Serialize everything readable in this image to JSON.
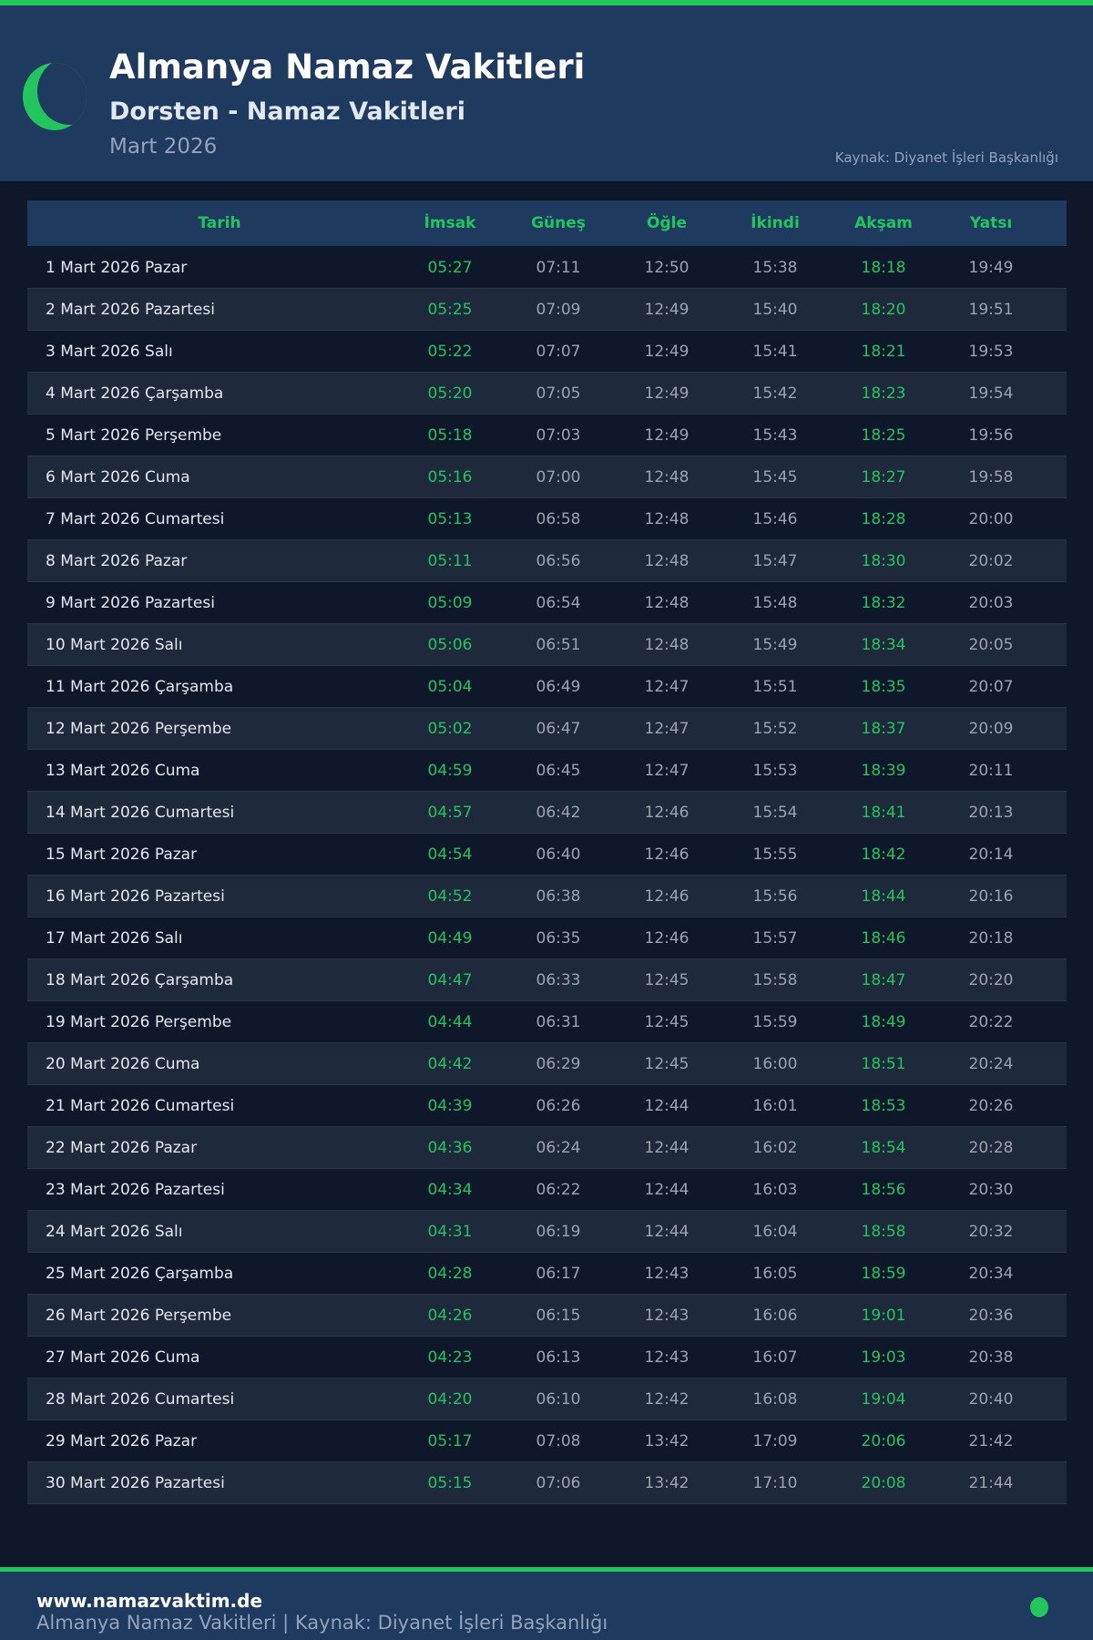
{
  "header": {
    "title": "Almanya Namaz Vakitleri",
    "subtitle": "Dorsten - Namaz Vakitleri",
    "month": "Mart 2026",
    "source": "Kaynak: Diyanet İşleri Başkanlığı",
    "icon": "crescent-moon-icon"
  },
  "colors": {
    "accent": "#22c55e",
    "header_bg": "#1e3a5f",
    "page_bg": "#0f172a"
  },
  "table": {
    "columns": [
      "Tarih",
      "İmsak",
      "Güneş",
      "Öğle",
      "İkindi",
      "Akşam",
      "Yatsı"
    ],
    "rows": [
      [
        "1 Mart 2026 Pazar",
        "05:27",
        "07:11",
        "12:50",
        "15:38",
        "18:18",
        "19:49"
      ],
      [
        "2 Mart 2026 Pazartesi",
        "05:25",
        "07:09",
        "12:49",
        "15:40",
        "18:20",
        "19:51"
      ],
      [
        "3 Mart 2026 Salı",
        "05:22",
        "07:07",
        "12:49",
        "15:41",
        "18:21",
        "19:53"
      ],
      [
        "4 Mart 2026 Çarşamba",
        "05:20",
        "07:05",
        "12:49",
        "15:42",
        "18:23",
        "19:54"
      ],
      [
        "5 Mart 2026 Perşembe",
        "05:18",
        "07:03",
        "12:49",
        "15:43",
        "18:25",
        "19:56"
      ],
      [
        "6 Mart 2026 Cuma",
        "05:16",
        "07:00",
        "12:48",
        "15:45",
        "18:27",
        "19:58"
      ],
      [
        "7 Mart 2026 Cumartesi",
        "05:13",
        "06:58",
        "12:48",
        "15:46",
        "18:28",
        "20:00"
      ],
      [
        "8 Mart 2026 Pazar",
        "05:11",
        "06:56",
        "12:48",
        "15:47",
        "18:30",
        "20:02"
      ],
      [
        "9 Mart 2026 Pazartesi",
        "05:09",
        "06:54",
        "12:48",
        "15:48",
        "18:32",
        "20:03"
      ],
      [
        "10 Mart 2026 Salı",
        "05:06",
        "06:51",
        "12:48",
        "15:49",
        "18:34",
        "20:05"
      ],
      [
        "11 Mart 2026 Çarşamba",
        "05:04",
        "06:49",
        "12:47",
        "15:51",
        "18:35",
        "20:07"
      ],
      [
        "12 Mart 2026 Perşembe",
        "05:02",
        "06:47",
        "12:47",
        "15:52",
        "18:37",
        "20:09"
      ],
      [
        "13 Mart 2026 Cuma",
        "04:59",
        "06:45",
        "12:47",
        "15:53",
        "18:39",
        "20:11"
      ],
      [
        "14 Mart 2026 Cumartesi",
        "04:57",
        "06:42",
        "12:46",
        "15:54",
        "18:41",
        "20:13"
      ],
      [
        "15 Mart 2026 Pazar",
        "04:54",
        "06:40",
        "12:46",
        "15:55",
        "18:42",
        "20:14"
      ],
      [
        "16 Mart 2026 Pazartesi",
        "04:52",
        "06:38",
        "12:46",
        "15:56",
        "18:44",
        "20:16"
      ],
      [
        "17 Mart 2026 Salı",
        "04:49",
        "06:35",
        "12:46",
        "15:57",
        "18:46",
        "20:18"
      ],
      [
        "18 Mart 2026 Çarşamba",
        "04:47",
        "06:33",
        "12:45",
        "15:58",
        "18:47",
        "20:20"
      ],
      [
        "19 Mart 2026 Perşembe",
        "04:44",
        "06:31",
        "12:45",
        "15:59",
        "18:49",
        "20:22"
      ],
      [
        "20 Mart 2026 Cuma",
        "04:42",
        "06:29",
        "12:45",
        "16:00",
        "18:51",
        "20:24"
      ],
      [
        "21 Mart 2026 Cumartesi",
        "04:39",
        "06:26",
        "12:44",
        "16:01",
        "18:53",
        "20:26"
      ],
      [
        "22 Mart 2026 Pazar",
        "04:36",
        "06:24",
        "12:44",
        "16:02",
        "18:54",
        "20:28"
      ],
      [
        "23 Mart 2026 Pazartesi",
        "04:34",
        "06:22",
        "12:44",
        "16:03",
        "18:56",
        "20:30"
      ],
      [
        "24 Mart 2026 Salı",
        "04:31",
        "06:19",
        "12:44",
        "16:04",
        "18:58",
        "20:32"
      ],
      [
        "25 Mart 2026 Çarşamba",
        "04:28",
        "06:17",
        "12:43",
        "16:05",
        "18:59",
        "20:34"
      ],
      [
        "26 Mart 2026 Perşembe",
        "04:26",
        "06:15",
        "12:43",
        "16:06",
        "19:01",
        "20:36"
      ],
      [
        "27 Mart 2026 Cuma",
        "04:23",
        "06:13",
        "12:43",
        "16:07",
        "19:03",
        "20:38"
      ],
      [
        "28 Mart 2026 Cumartesi",
        "04:20",
        "06:10",
        "12:42",
        "16:08",
        "19:04",
        "20:40"
      ],
      [
        "29 Mart 2026 Pazar",
        "05:17",
        "07:08",
        "13:42",
        "17:09",
        "20:06",
        "21:42"
      ],
      [
        "30 Mart 2026 Pazartesi",
        "05:15",
        "07:06",
        "13:42",
        "17:10",
        "20:08",
        "21:44"
      ]
    ]
  },
  "footer": {
    "site": "www.namazvaktim.de",
    "text": "Almanya Namaz Vakitleri | Kaynak: Diyanet İşleri Başkanlığı",
    "icon": "status-dot-icon"
  }
}
